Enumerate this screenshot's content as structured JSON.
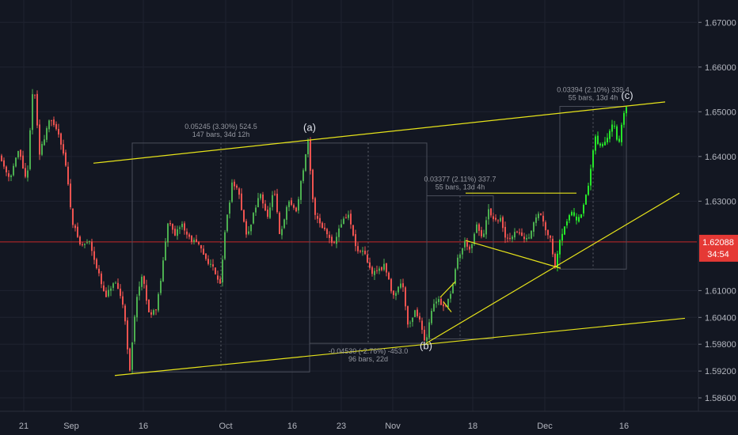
{
  "chart_data": {
    "type": "candlestick",
    "title": "",
    "colors": {
      "background": "#131722",
      "up": "#4caf50",
      "down": "#ef5350",
      "live_up": "#26e62a",
      "trendline": "#e6e31a",
      "grid": "#1f2330",
      "price_line": "#c62828",
      "price_tag": "#e53935",
      "measure_box": "#4a4e5a",
      "dotted": "#5d606b"
    },
    "ylim": [
      1.583,
      1.675
    ],
    "y_ticks": [
      "1.67000",
      "1.66000",
      "1.65000",
      "1.64000",
      "1.63000",
      "1.62088",
      "1.61000",
      "1.60400",
      "1.59800",
      "1.59200",
      "1.58600"
    ],
    "x_ticks": [
      "21",
      "Sep",
      "16",
      "Oct",
      "16",
      "23",
      "Nov",
      "18",
      "Dec",
      "16"
    ],
    "current_price": {
      "value": 1.62088,
      "label": "1.62088",
      "countdown": "34:54"
    },
    "path_points": [
      [
        0,
        1.6405
      ],
      [
        14,
        1.6352
      ],
      [
        26,
        1.6415
      ],
      [
        36,
        1.6335
      ],
      [
        44,
        1.6575
      ],
      [
        52,
        1.6405
      ],
      [
        64,
        1.6482
      ],
      [
        76,
        1.6452
      ],
      [
        84,
        1.6395
      ],
      [
        93,
        1.6258
      ],
      [
        104,
        1.6198
      ],
      [
        115,
        1.6212
      ],
      [
        126,
        1.614
      ],
      [
        135,
        1.6082
      ],
      [
        146,
        1.612
      ],
      [
        158,
        1.6068
      ],
      [
        166,
        1.5918
      ],
      [
        174,
        1.6085
      ],
      [
        182,
        1.6132
      ],
      [
        190,
        1.6048
      ],
      [
        200,
        1.6062
      ],
      [
        208,
        1.6162
      ],
      [
        215,
        1.627
      ],
      [
        222,
        1.6215
      ],
      [
        231,
        1.6252
      ],
      [
        240,
        1.6218
      ],
      [
        251,
        1.6205
      ],
      [
        262,
        1.6172
      ],
      [
        272,
        1.6148
      ],
      [
        280,
        1.6118
      ],
      [
        287,
        1.6245
      ],
      [
        296,
        1.6348
      ],
      [
        305,
        1.6305
      ],
      [
        314,
        1.6215
      ],
      [
        322,
        1.6272
      ],
      [
        331,
        1.6318
      ],
      [
        340,
        1.6262
      ],
      [
        348,
        1.6325
      ],
      [
        356,
        1.6215
      ],
      [
        366,
        1.6302
      ],
      [
        376,
        1.6278
      ],
      [
        384,
        1.6362
      ],
      [
        391,
        1.643
      ],
      [
        398,
        1.628
      ],
      [
        406,
        1.6252
      ],
      [
        415,
        1.6228
      ],
      [
        424,
        1.6205
      ],
      [
        432,
        1.625
      ],
      [
        442,
        1.627
      ],
      [
        452,
        1.619
      ],
      [
        462,
        1.6182
      ],
      [
        471,
        1.6138
      ],
      [
        480,
        1.6148
      ],
      [
        488,
        1.6155
      ],
      [
        498,
        1.6088
      ],
      [
        510,
        1.6122
      ],
      [
        518,
        1.6015
      ],
      [
        526,
        1.6058
      ],
      [
        534,
        1.6022
      ],
      [
        539,
        1.5982
      ],
      [
        546,
        1.6048
      ],
      [
        554,
        1.6085
      ],
      [
        563,
        1.6062
      ],
      [
        572,
        1.6098
      ],
      [
        580,
        1.6172
      ],
      [
        589,
        1.6208
      ],
      [
        597,
        1.6192
      ],
      [
        604,
        1.6245
      ],
      [
        612,
        1.6216
      ],
      [
        619,
        1.628
      ],
      [
        626,
        1.625
      ],
      [
        633,
        1.6265
      ],
      [
        641,
        1.6212
      ],
      [
        650,
        1.6225
      ],
      [
        658,
        1.6232
      ],
      [
        666,
        1.6208
      ],
      [
        675,
        1.6245
      ],
      [
        683,
        1.6278
      ],
      [
        690,
        1.6242
      ],
      [
        697,
        1.622
      ],
      [
        703,
        1.615
      ],
      [
        708,
        1.6212
      ],
      [
        716,
        1.6248
      ],
      [
        724,
        1.628
      ],
      [
        732,
        1.6255
      ],
      [
        740,
        1.6292
      ],
      [
        747,
        1.6355
      ],
      [
        753,
        1.6448
      ],
      [
        760,
        1.642
      ],
      [
        768,
        1.6438
      ],
      [
        776,
        1.6482
      ],
      [
        783,
        1.6418
      ],
      [
        791,
        1.6512
      ]
    ],
    "live_from_x": 703,
    "annotations": {
      "wave_labels": [
        {
          "text": "(a)",
          "x": 391,
          "value": 1.645
        },
        {
          "text": "(b)",
          "x": 538,
          "value": 1.5962
        },
        {
          "text": "(c)",
          "x": 792,
          "value": 1.6522
        }
      ],
      "measurements": [
        {
          "line1": "0.05245 (3.30%) 524.5",
          "line2": "147 bars, 34d 12h",
          "box": [
            [
              167,
              1.5918
            ],
            [
              391,
              1.643
            ]
          ]
        },
        {
          "line1": "-0.04530 (-2.76%) -453.0",
          "line2": "96 bars, 22d",
          "box": [
            [
              391,
              1.5982
            ],
            [
              539,
              1.643
            ]
          ]
        },
        {
          "line1": "0.03377 (2.11%) 337.7",
          "line2": "55 bars, 13d 4h",
          "box": [
            [
              539,
              1.5992
            ],
            [
              623,
              1.6312
            ]
          ]
        },
        {
          "line1": "0.03394 (2.10%) 339.4",
          "line2": "55 bars, 13d 4h",
          "box": [
            [
              707,
              1.6148
            ],
            [
              791,
              1.6512
            ]
          ]
        }
      ],
      "trendlines": [
        [
          [
            118,
            1.6385
          ],
          [
            840,
            1.6522
          ]
        ],
        [
          [
            145,
            1.591
          ],
          [
            865,
            1.6038
          ]
        ],
        [
          [
            588,
            1.6318
          ],
          [
            728,
            1.6318
          ]
        ],
        [
          [
            588,
            1.6212
          ],
          [
            708,
            1.615
          ]
        ],
        [
          [
            538,
            1.5982
          ],
          [
            858,
            1.6318
          ]
        ],
        [
          [
            556,
            1.6085
          ],
          [
            575,
            1.612
          ]
        ],
        [
          [
            560,
            1.6075
          ],
          [
            570,
            1.6052
          ]
        ]
      ]
    }
  }
}
